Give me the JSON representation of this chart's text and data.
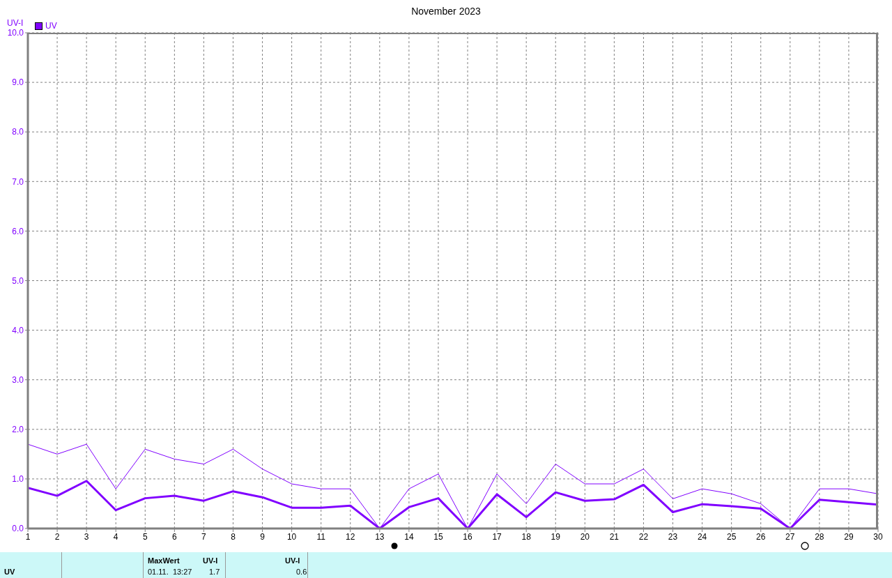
{
  "chart_data": {
    "type": "line",
    "title": "November 2023",
    "ylabel": "UV-I",
    "x": [
      1,
      2,
      3,
      4,
      5,
      6,
      7,
      8,
      9,
      10,
      11,
      12,
      13,
      14,
      15,
      16,
      17,
      18,
      19,
      20,
      21,
      22,
      23,
      24,
      25,
      26,
      27,
      28,
      29,
      30
    ],
    "series": [
      {
        "name": "UV",
        "color": "#8000ff",
        "values": [
          0.82,
          0.66,
          0.96,
          0.37,
          0.61,
          0.66,
          0.56,
          0.75,
          0.63,
          0.42,
          0.42,
          0.46,
          0,
          0.43,
          0.61,
          0,
          0.69,
          0.23,
          0.73,
          0.56,
          0.59,
          0.88,
          0.33,
          0.49,
          0.45,
          0.4,
          0,
          0.58,
          0.53,
          0.48
        ]
      },
      {
        "color": "#8000ff",
        "values": [
          1.7,
          1.5,
          1.7,
          0.8,
          1.6,
          1.4,
          1.3,
          1.6,
          1.2,
          0.9,
          0.8,
          0.8,
          0,
          0.8,
          1.1,
          0,
          1.1,
          0.5,
          1.3,
          0.9,
          0.9,
          1.2,
          0.6,
          0.8,
          0.7,
          0.5,
          0,
          0.8,
          0.8,
          0.7
        ]
      }
    ],
    "xlim": [
      1,
      30
    ],
    "xticks": [
      1,
      2,
      3,
      4,
      5,
      6,
      7,
      8,
      9,
      10,
      11,
      12,
      13,
      14,
      15,
      16,
      17,
      18,
      19,
      20,
      21,
      22,
      23,
      24,
      25,
      26,
      27,
      28,
      29,
      30
    ],
    "ylim": [
      0,
      10
    ],
    "yticks": [
      {
        "value": 0,
        "label": "0.0"
      },
      {
        "value": 1,
        "label": "1.0"
      },
      {
        "value": 2,
        "label": "2.0"
      },
      {
        "value": 3,
        "label": "3.0"
      },
      {
        "value": 4,
        "label": "4.0"
      },
      {
        "value": 5,
        "label": "5.0"
      },
      {
        "value": 6,
        "label": "6.0"
      },
      {
        "value": 7,
        "label": "7.0"
      },
      {
        "value": 8,
        "label": "8.0"
      },
      {
        "value": 9,
        "label": "9.0"
      },
      {
        "value": 10,
        "label": "10.0"
      }
    ],
    "grid": true,
    "legend": "top left",
    "marker": "none",
    "line_style": "solid",
    "annotations": [
      "UV",
      "MaxWert",
      "UV-I",
      "01.11.  13:27",
      "1.7",
      "UV-I",
      "0.6"
    ]
  }
}
